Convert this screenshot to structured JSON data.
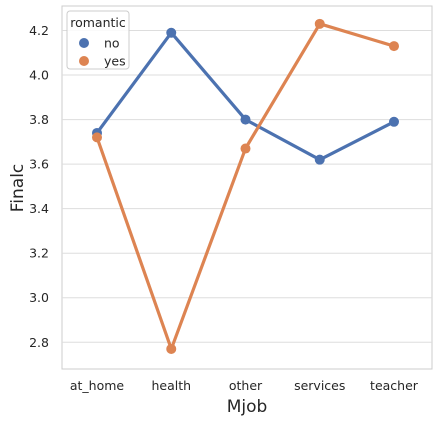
{
  "chart_data": {
    "type": "line",
    "xlabel": "Mjob",
    "ylabel": "Finalc",
    "categories": [
      "at_home",
      "health",
      "other",
      "services",
      "teacher"
    ],
    "ylim": [
      2.68,
      4.31
    ],
    "yticks": [
      "2.8",
      "3.0",
      "3.2",
      "3.4",
      "3.6",
      "3.8",
      "4.0",
      "4.2"
    ],
    "grid": true,
    "legend": {
      "title": "romantic",
      "placement": "top-left"
    },
    "series": [
      {
        "name": "no",
        "color": "#4c72b0",
        "values": [
          3.74,
          4.19,
          3.8,
          3.62,
          3.79
        ]
      },
      {
        "name": "yes",
        "color": "#dd8452",
        "values": [
          3.72,
          2.77,
          3.67,
          4.23,
          4.13
        ]
      }
    ]
  }
}
